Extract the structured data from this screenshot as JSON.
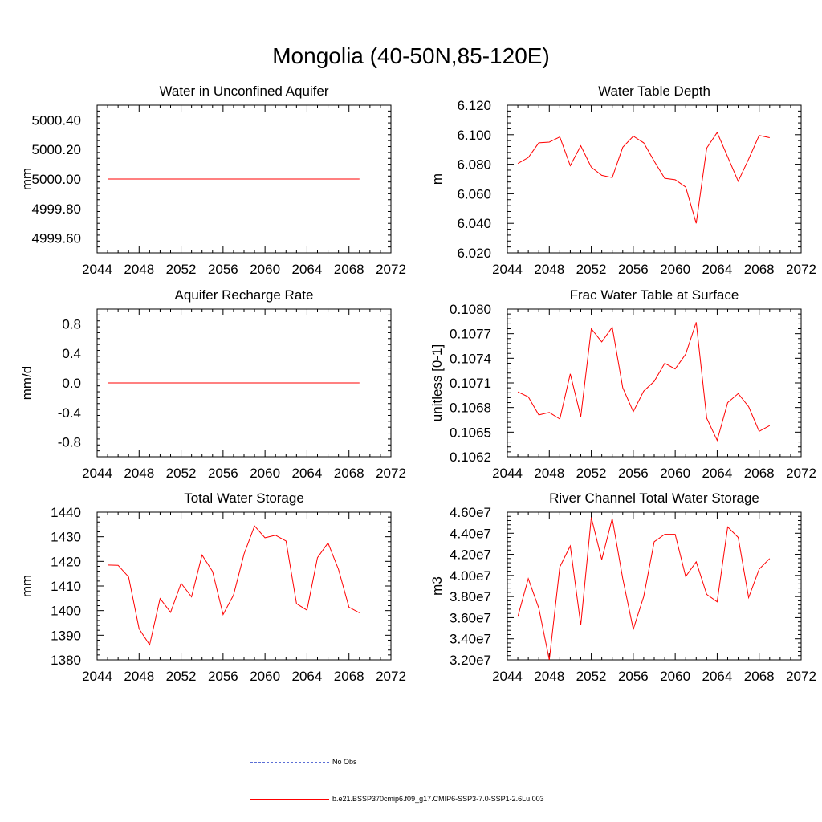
{
  "page": {
    "title": "Mongolia (40-50N,85-120E)"
  },
  "colors": {
    "model": "#ff0000",
    "obs": "#5b6fd6",
    "axis": "#000000"
  },
  "legend": {
    "obs_label": "No Obs",
    "model_label": "b.e21.BSSP370cmip6.f09_g17.CMIP6-SSP3-7.0-SSP1-2.6Lu.003"
  },
  "chart_data": [
    {
      "type": "line",
      "title": "Water in Unconfined Aquifer",
      "ylabel": "mm",
      "xlim": [
        2044,
        2072
      ],
      "ylim": [
        4999.5,
        5000.5
      ],
      "xticks": [
        2044,
        2048,
        2052,
        2056,
        2060,
        2064,
        2068,
        2072
      ],
      "yticks": [
        4999.6,
        4999.8,
        5000.0,
        5000.2,
        5000.4
      ],
      "ytick_labels": [
        "4999.60",
        "4999.80",
        "5000.00",
        "5000.20",
        "5000.40"
      ],
      "x": [
        2045,
        2046,
        2047,
        2048,
        2049,
        2050,
        2051,
        2052,
        2053,
        2054,
        2055,
        2056,
        2057,
        2058,
        2059,
        2060,
        2061,
        2062,
        2063,
        2064,
        2065,
        2066,
        2067,
        2068,
        2069
      ],
      "series": [
        {
          "name": "b.e21.BSSP370cmip6.f09_g17.CMIP6-SSP3-7.0-SSP1-2.6Lu.003",
          "values": [
            5000,
            5000,
            5000,
            5000,
            5000,
            5000,
            5000,
            5000,
            5000,
            5000,
            5000,
            5000,
            5000,
            5000,
            5000,
            5000,
            5000,
            5000,
            5000,
            5000,
            5000,
            5000,
            5000,
            5000,
            5000
          ]
        }
      ]
    },
    {
      "type": "line",
      "title": "Water Table Depth",
      "ylabel": "m",
      "xlim": [
        2044,
        2072
      ],
      "ylim": [
        6.02,
        6.12
      ],
      "xticks": [
        2044,
        2048,
        2052,
        2056,
        2060,
        2064,
        2068,
        2072
      ],
      "yticks": [
        6.02,
        6.04,
        6.06,
        6.08,
        6.1,
        6.12
      ],
      "ytick_labels": [
        "6.020",
        "6.040",
        "6.060",
        "6.080",
        "6.100",
        "6.120"
      ],
      "x": [
        2045,
        2046,
        2047,
        2048,
        2049,
        2050,
        2051,
        2052,
        2053,
        2054,
        2055,
        2056,
        2057,
        2058,
        2059,
        2060,
        2061,
        2062,
        2063,
        2064,
        2065,
        2066,
        2067,
        2068,
        2069
      ],
      "series": [
        {
          "name": "b.e21.BSSP370cmip6.f09_g17.CMIP6-SSP3-7.0-SSP1-2.6Lu.003",
          "values": [
            6.0805,
            6.0845,
            6.0945,
            6.095,
            6.0985,
            6.079,
            6.0925,
            6.078,
            6.0725,
            6.071,
            6.0915,
            6.099,
            6.0945,
            6.082,
            6.0705,
            6.0695,
            6.0645,
            6.04,
            6.091,
            6.1015,
            6.085,
            6.0685,
            6.0835,
            6.0995,
            6.098
          ]
        }
      ]
    },
    {
      "type": "line",
      "title": "Aquifer Recharge Rate",
      "ylabel": "mm/d",
      "xlim": [
        2044,
        2072
      ],
      "ylim": [
        -1.0,
        1.0
      ],
      "xticks": [
        2044,
        2048,
        2052,
        2056,
        2060,
        2064,
        2068,
        2072
      ],
      "yticks": [
        -0.8,
        -0.4,
        0.0,
        0.4,
        0.8
      ],
      "ytick_labels": [
        "-0.8",
        "-0.4",
        "0.0",
        "0.4",
        "0.8"
      ],
      "x": [
        2045,
        2046,
        2047,
        2048,
        2049,
        2050,
        2051,
        2052,
        2053,
        2054,
        2055,
        2056,
        2057,
        2058,
        2059,
        2060,
        2061,
        2062,
        2063,
        2064,
        2065,
        2066,
        2067,
        2068,
        2069
      ],
      "series": [
        {
          "name": "b.e21.BSSP370cmip6.f09_g17.CMIP6-SSP3-7.0-SSP1-2.6Lu.003",
          "values": [
            0,
            0,
            0,
            0,
            0,
            0,
            0,
            0,
            0,
            0,
            0,
            0,
            0,
            0,
            0,
            0,
            0,
            0,
            0,
            0,
            0,
            0,
            0,
            0,
            0
          ]
        }
      ]
    },
    {
      "type": "line",
      "title": "Frac Water Table at Surface",
      "ylabel": "unitless [0-1]",
      "xlim": [
        2044,
        2072
      ],
      "ylim": [
        0.1062,
        0.108
      ],
      "xticks": [
        2044,
        2048,
        2052,
        2056,
        2060,
        2064,
        2068,
        2072
      ],
      "yticks": [
        0.1062,
        0.1065,
        0.1068,
        0.1071,
        0.1074,
        0.1077,
        0.108
      ],
      "ytick_labels": [
        "0.1062",
        "0.1065",
        "0.1068",
        "0.1071",
        "0.1074",
        "0.1077",
        "0.1080"
      ],
      "x": [
        2045,
        2046,
        2047,
        2048,
        2049,
        2050,
        2051,
        2052,
        2053,
        2054,
        2055,
        2056,
        2057,
        2058,
        2059,
        2060,
        2061,
        2062,
        2063,
        2064,
        2065,
        2066,
        2067,
        2068,
        2069
      ],
      "series": [
        {
          "name": "b.e21.BSSP370cmip6.f09_g17.CMIP6-SSP3-7.0-SSP1-2.6Lu.003",
          "values": [
            0.10699,
            0.10693,
            0.10671,
            0.10674,
            0.10666,
            0.10721,
            0.10669,
            0.10776,
            0.1076,
            0.10778,
            0.10704,
            0.10675,
            0.107,
            0.10712,
            0.10734,
            0.10727,
            0.10745,
            0.10784,
            0.10667,
            0.1064,
            0.10686,
            0.10697,
            0.10681,
            0.10651,
            0.10658
          ]
        }
      ]
    },
    {
      "type": "line",
      "title": "Total Water Storage",
      "ylabel": "mm",
      "xlim": [
        2044,
        2072
      ],
      "ylim": [
        1380,
        1440
      ],
      "xticks": [
        2044,
        2048,
        2052,
        2056,
        2060,
        2064,
        2068,
        2072
      ],
      "yticks": [
        1380,
        1390,
        1400,
        1410,
        1420,
        1430,
        1440
      ],
      "ytick_labels": [
        "1380",
        "1390",
        "1400",
        "1410",
        "1420",
        "1430",
        "1440"
      ],
      "x": [
        2045,
        2046,
        2047,
        2048,
        2049,
        2050,
        2051,
        2052,
        2053,
        2054,
        2055,
        2056,
        2057,
        2058,
        2059,
        2060,
        2061,
        2062,
        2063,
        2064,
        2065,
        2066,
        2067,
        2068,
        2069
      ],
      "series": [
        {
          "name": "b.e21.BSSP370cmip6.f09_g17.CMIP6-SSP3-7.0-SSP1-2.6Lu.003",
          "values": [
            1418.5,
            1418.4,
            1413.7,
            1392.6,
            1386.1,
            1404.9,
            1399.3,
            1411.1,
            1405.6,
            1422.6,
            1415.9,
            1398.4,
            1406.3,
            1423.0,
            1434.4,
            1429.6,
            1430.6,
            1428.3,
            1402.8,
            1400.2,
            1421.5,
            1427.5,
            1416.8,
            1401.4,
            1399.1
          ]
        }
      ]
    },
    {
      "type": "line",
      "title": "River Channel Total Water Storage",
      "ylabel": "m3",
      "xlim": [
        2044,
        2072
      ],
      "ylim": [
        32000000,
        46000000
      ],
      "xticks": [
        2044,
        2048,
        2052,
        2056,
        2060,
        2064,
        2068,
        2072
      ],
      "yticks": [
        32000000,
        34000000,
        36000000,
        38000000,
        40000000,
        42000000,
        44000000,
        46000000
      ],
      "ytick_labels": [
        "3.20e7",
        "3.40e7",
        "3.60e7",
        "3.80e7",
        "4.00e7",
        "4.20e7",
        "4.40e7",
        "4.60e7"
      ],
      "x": [
        2045,
        2046,
        2047,
        2048,
        2049,
        2050,
        2051,
        2052,
        2053,
        2054,
        2055,
        2056,
        2057,
        2058,
        2059,
        2060,
        2061,
        2062,
        2063,
        2064,
        2065,
        2066,
        2067,
        2068,
        2069
      ],
      "series": [
        {
          "name": "b.e21.BSSP370cmip6.f09_g17.CMIP6-SSP3-7.0-SSP1-2.6Lu.003",
          "values": [
            36100000,
            39700000,
            36900000,
            32000000,
            40800000,
            42800000,
            35300000,
            45500000,
            41500000,
            45400000,
            39700000,
            34900000,
            38000000,
            43200000,
            43900000,
            43900000,
            39900000,
            41300000,
            38200000,
            37500000,
            44600000,
            43600000,
            37900000,
            40600000,
            41600000
          ]
        }
      ]
    }
  ]
}
